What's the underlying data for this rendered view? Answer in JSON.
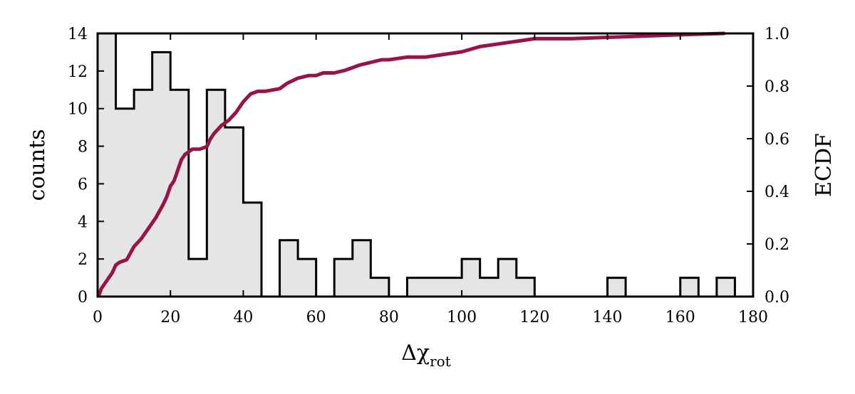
{
  "chart_data": {
    "type": "bar",
    "subtype": "histogram-with-ecdf",
    "xlabel": "Δχ",
    "xlabel_subscript": "rot",
    "ylabel_left": "counts",
    "ylabel_right": "ECDF",
    "xlim": [
      0,
      180
    ],
    "ylim_left": [
      0,
      14
    ],
    "ylim_right": [
      0,
      1
    ],
    "xticks": [
      0,
      20,
      40,
      60,
      80,
      100,
      120,
      140,
      160,
      180
    ],
    "yticks_left": [
      0,
      2,
      4,
      6,
      8,
      10,
      12,
      14
    ],
    "yticks_right": [
      0.0,
      0.2,
      0.4,
      0.6,
      0.8,
      1.0
    ],
    "ytick_right_labels": [
      "0.0",
      "0.2",
      "0.4",
      "0.6",
      "0.8",
      "1.0"
    ],
    "bin_width": 5,
    "bin_edges_start": 0,
    "histogram_counts": [
      14,
      10,
      11,
      13,
      11,
      2,
      11,
      9,
      5,
      0,
      3,
      2,
      0,
      2,
      3,
      1,
      0,
      1,
      1,
      1,
      2,
      1,
      2,
      1,
      0,
      0,
      0,
      0,
      1,
      0,
      0,
      0,
      1,
      0,
      1
    ],
    "ecdf": {
      "x": [
        0.5,
        1,
        2,
        3,
        4,
        5,
        6,
        8,
        10,
        12,
        14,
        16,
        18,
        19,
        20,
        21,
        22,
        23,
        24,
        25,
        26,
        28,
        30,
        31,
        32,
        34,
        36,
        38,
        39,
        40,
        42,
        44,
        46,
        50,
        52,
        55,
        58,
        60,
        62,
        65,
        68,
        70,
        72,
        75,
        78,
        80,
        85,
        90,
        95,
        100,
        105,
        110,
        115,
        120,
        130,
        140,
        150,
        160,
        172
      ],
      "y": [
        0.01,
        0.03,
        0.05,
        0.07,
        0.09,
        0.12,
        0.13,
        0.14,
        0.19,
        0.22,
        0.26,
        0.3,
        0.35,
        0.38,
        0.42,
        0.44,
        0.48,
        0.52,
        0.54,
        0.55,
        0.56,
        0.56,
        0.57,
        0.6,
        0.62,
        0.65,
        0.67,
        0.7,
        0.72,
        0.74,
        0.77,
        0.78,
        0.78,
        0.79,
        0.81,
        0.83,
        0.84,
        0.84,
        0.85,
        0.85,
        0.86,
        0.87,
        0.88,
        0.89,
        0.9,
        0.9,
        0.91,
        0.91,
        0.92,
        0.93,
        0.95,
        0.96,
        0.97,
        0.98,
        0.98,
        0.985,
        0.99,
        0.995,
        1.0
      ]
    },
    "grid": false,
    "legend": "none",
    "colors": {
      "bar_fill": "#e5e5e5",
      "bar_stroke": "#000000",
      "ecdf_line": "#99134a"
    }
  }
}
